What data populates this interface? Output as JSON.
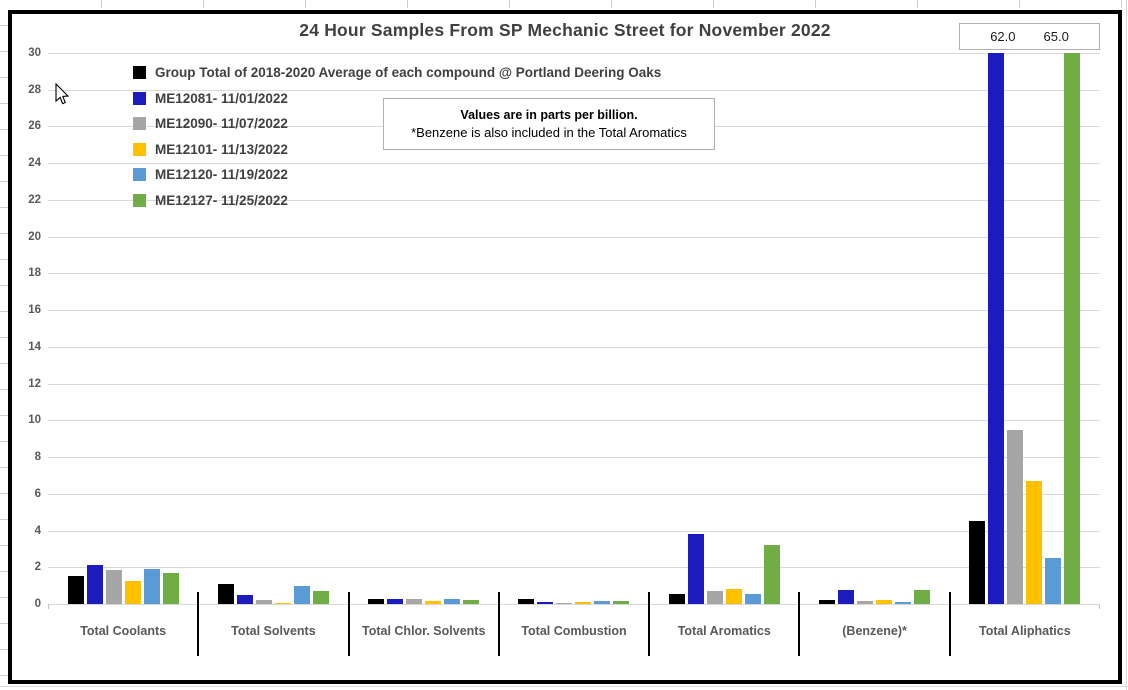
{
  "title": "24 Hour Samples From SP Mechanic Street for November 2022",
  "annotation": {
    "line1": "Values are in parts per billion.",
    "line2": "*Benzene is also included in the Total Aromatics"
  },
  "colors": {
    "gridline": "#d9d9d9",
    "axis_text": "#595959",
    "title_text": "#404040",
    "frame_border": "#000000"
  },
  "chart_data": {
    "type": "bar",
    "title": "24 Hour Samples From SP Mechanic Street for November 2022",
    "units_note": "Values are in parts per billion.",
    "categories": [
      "Total Coolants",
      "Total Solvents",
      "Total Chlor. Solvents",
      "Total Combustion",
      "Total Aromatics",
      "(Benzene)*",
      "Total Aliphatics"
    ],
    "series": [
      {
        "name": "Group Total of 2018-2020 Average of each compound @ Portland Deering Oaks",
        "color": "#000000",
        "values": [
          1.5,
          1.1,
          0.3,
          0.25,
          0.55,
          0.2,
          4.5
        ]
      },
      {
        "name": "ME12081- 11/01/2022",
        "color": "#1c1cbe",
        "values": [
          2.1,
          0.5,
          0.3,
          0.1,
          3.8,
          0.75,
          62.0
        ]
      },
      {
        "name": "ME12090- 11/07/2022",
        "color": "#a6a6a6",
        "values": [
          1.85,
          0.2,
          0.25,
          0.08,
          0.7,
          0.15,
          9.5
        ]
      },
      {
        "name": "ME12101- 11/13/2022",
        "color": "#ffc000",
        "values": [
          1.25,
          0.05,
          0.15,
          0.12,
          0.8,
          0.2,
          6.7
        ]
      },
      {
        "name": "ME12120- 11/19/2022",
        "color": "#5b9bd5",
        "values": [
          1.9,
          1.0,
          0.3,
          0.15,
          0.55,
          0.1,
          2.5
        ]
      },
      {
        "name": "ME12127- 11/25/2022",
        "color": "#70ad47",
        "values": [
          1.7,
          0.7,
          0.2,
          0.15,
          3.2,
          0.75,
          65.0
        ]
      }
    ],
    "ylim": [
      0,
      30
    ],
    "ytick_step": 2,
    "grid": true,
    "legend_position": "top-left-inside",
    "offscale_labels": [
      {
        "series": "ME12081- 11/01/2022",
        "category": "Total Aliphatics",
        "label": "62.0"
      },
      {
        "series": "ME12127- 11/25/2022",
        "category": "Total Aliphatics",
        "label": "65.0"
      }
    ]
  }
}
